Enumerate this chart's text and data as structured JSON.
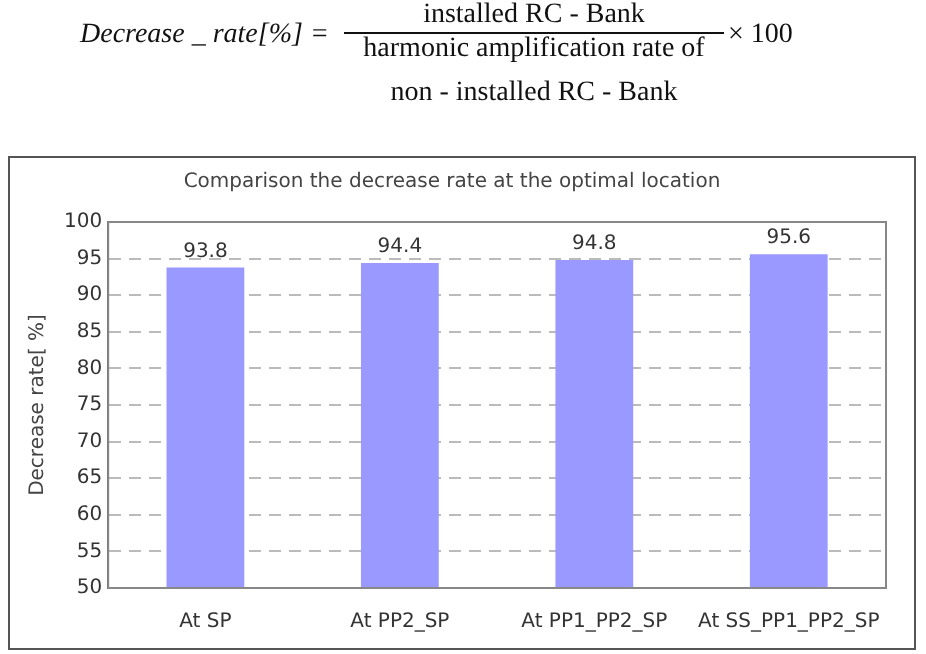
{
  "chart_data": {
    "type": "bar",
    "title": "Comparison the decrease rate at the optimal location",
    "ylabel": "Decrease rate[ %]",
    "categories": [
      "At SP",
      "At PP2_SP",
      "At PP1_PP2_SP",
      "At SS_PP1_PP2_SP"
    ],
    "values": [
      93.8,
      94.4,
      94.8,
      95.6
    ],
    "color": "#9999ff",
    "ylim": [
      50,
      100
    ],
    "yticks": [
      50,
      55,
      60,
      65,
      70,
      75,
      80,
      85,
      90,
      95,
      100
    ],
    "grid": "y",
    "data_labels": true,
    "legend": false,
    "annotations": [
      "Decrease _ rate[%] =",
      "installed RC - Bank",
      "harmonic amplification rate of",
      "non - installed RC - Bank",
      "× 100"
    ]
  }
}
